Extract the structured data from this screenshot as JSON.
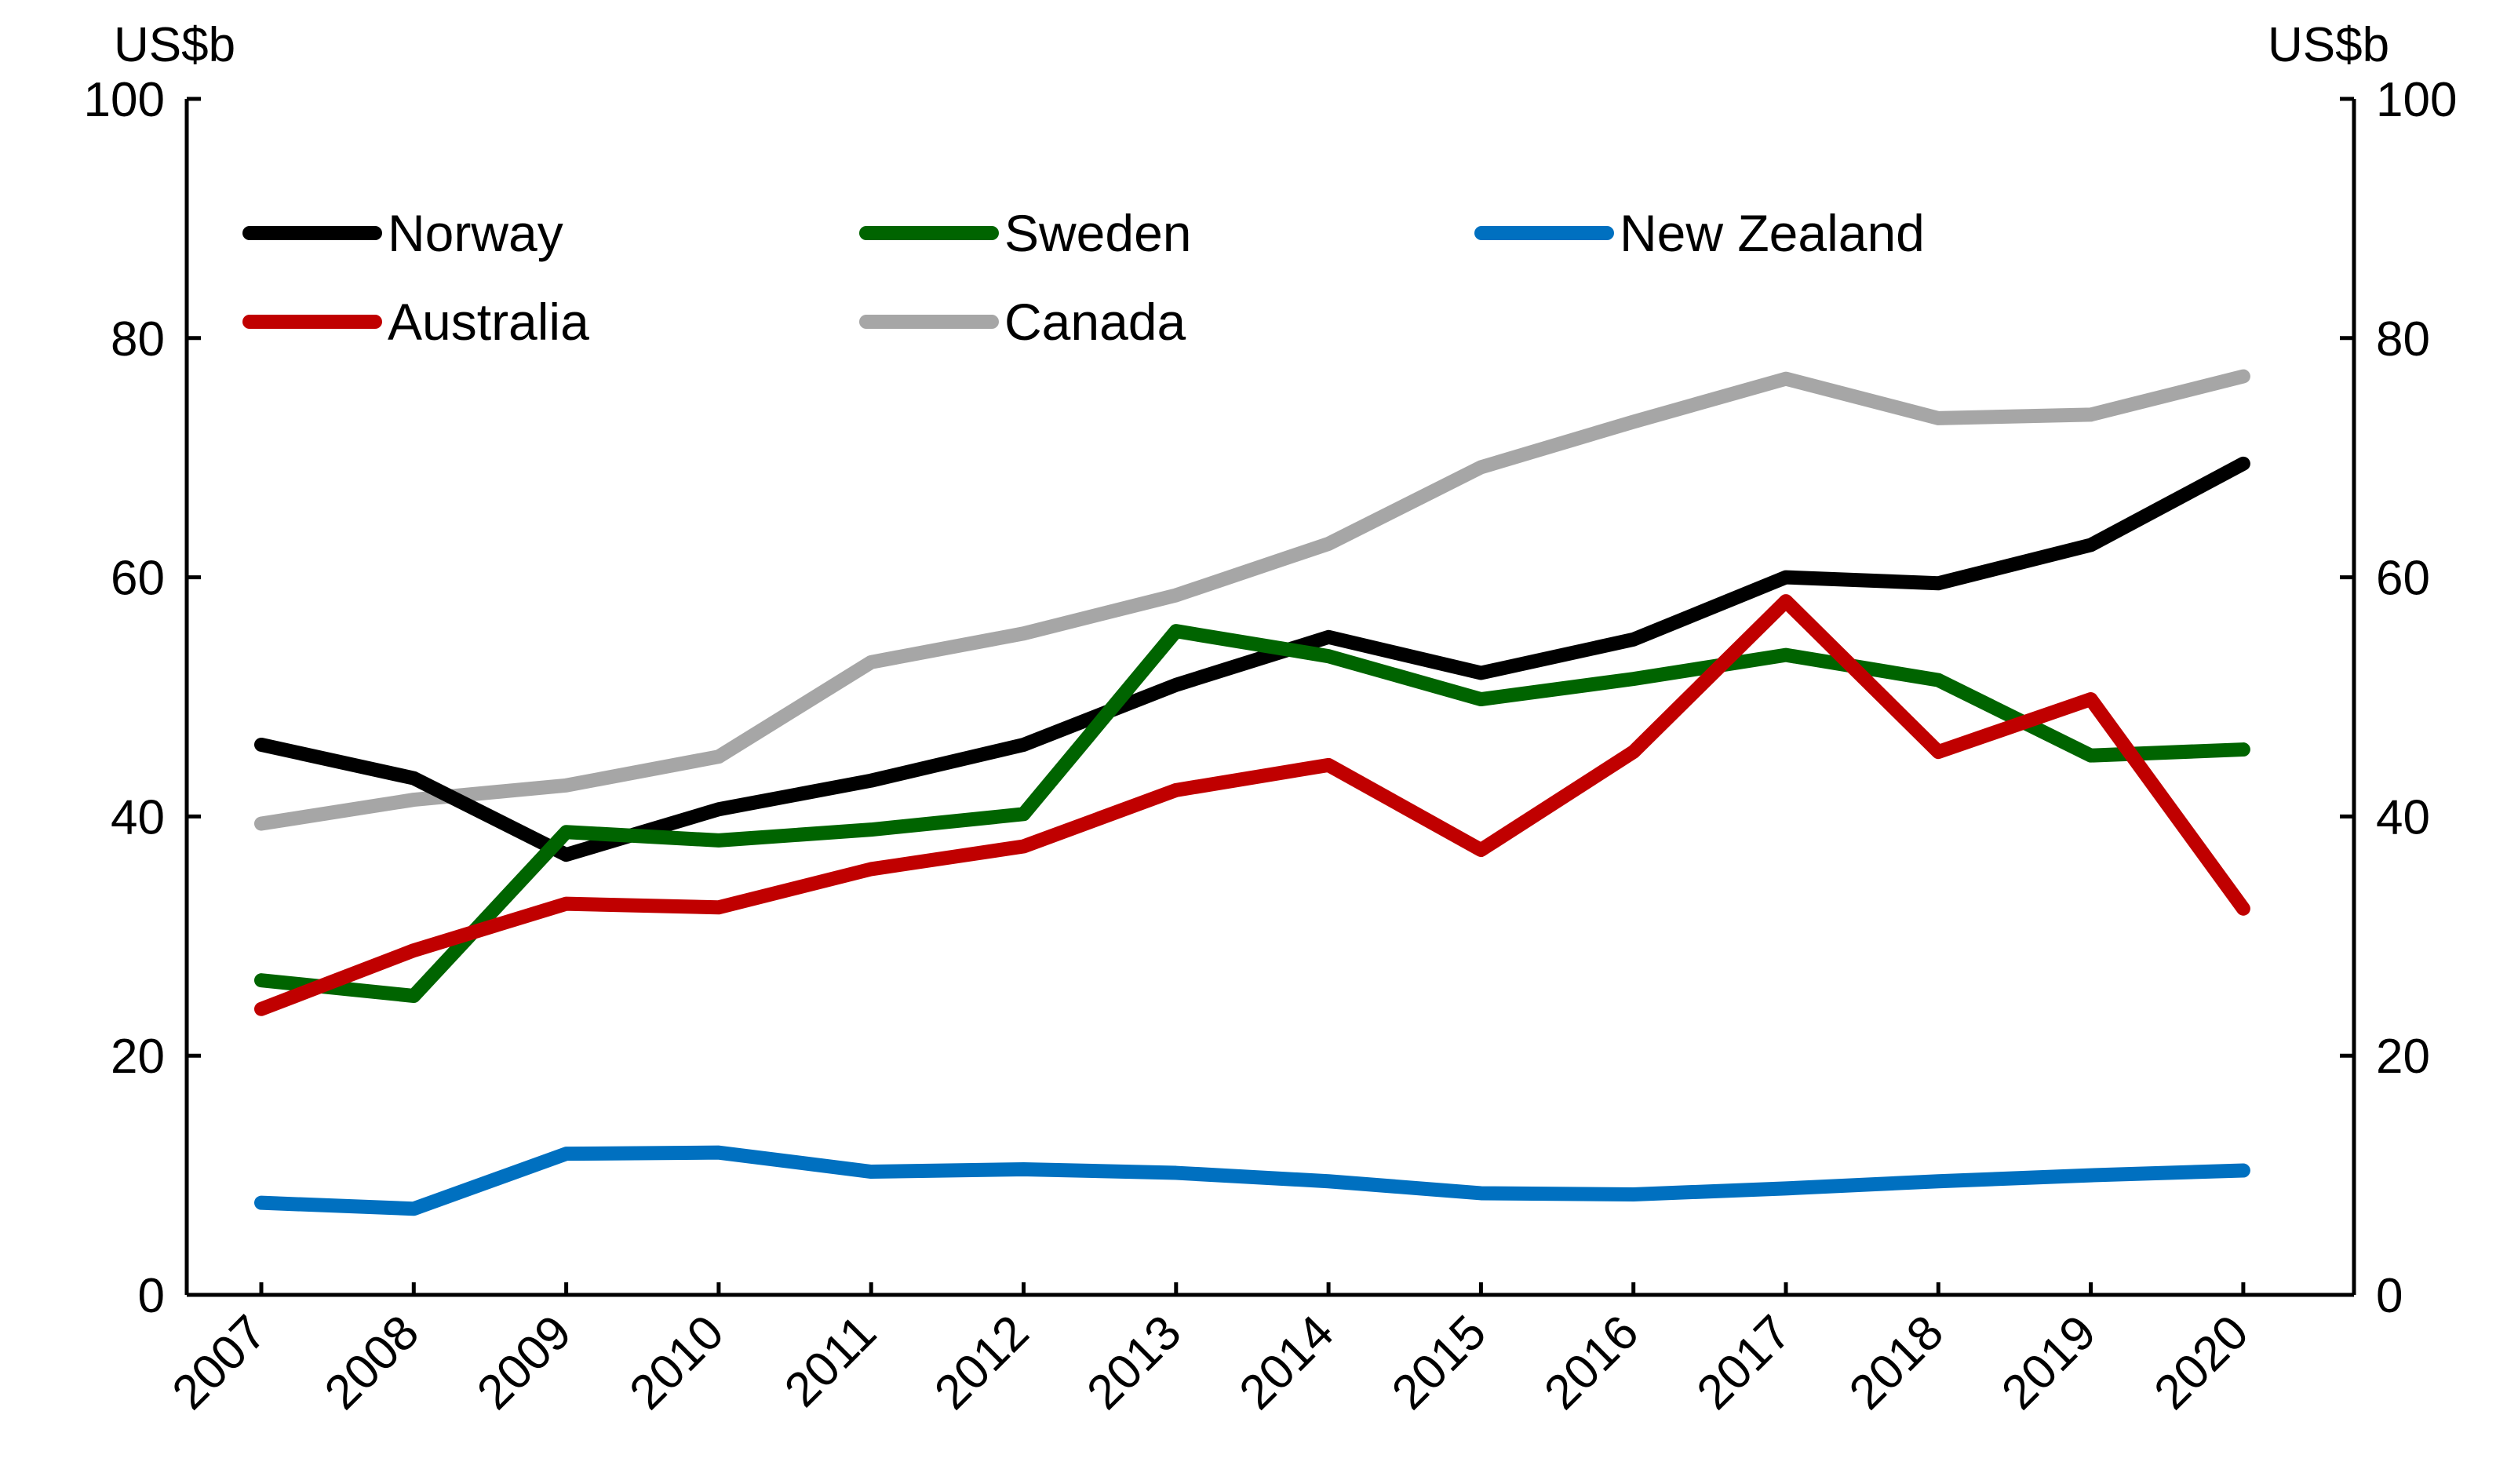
{
  "chart_data": {
    "type": "line",
    "y_unit_left": "US$b",
    "y_unit_right": "US$b",
    "categories": [
      "2007",
      "2008",
      "2009",
      "2010",
      "2011",
      "2012",
      "2013",
      "2014",
      "2015",
      "2016",
      "2017",
      "2018",
      "2019",
      "2020"
    ],
    "ylim": [
      0,
      100
    ],
    "yticks": [
      "0",
      "20",
      "40",
      "60",
      "80",
      "100"
    ],
    "legend_position": "top-left",
    "grid": false,
    "series": [
      {
        "name": "Norway",
        "color": "#000000",
        "values": [
          46.0,
          43.2,
          36.8,
          40.6,
          43.0,
          46.0,
          51.0,
          55.0,
          52.0,
          54.8,
          60.0,
          59.5,
          62.7,
          69.5
        ]
      },
      {
        "name": "Sweden",
        "color": "#006400",
        "values": [
          26.3,
          25.0,
          38.7,
          38.0,
          38.9,
          40.2,
          55.5,
          53.4,
          49.8,
          51.5,
          53.5,
          51.4,
          45.1,
          45.6
        ]
      },
      {
        "name": "New Zealand",
        "color": "#0070C0",
        "values": [
          7.7,
          7.2,
          11.8,
          11.9,
          10.3,
          10.5,
          10.2,
          9.5,
          8.5,
          8.4,
          8.9,
          9.5,
          10.0,
          10.4
        ]
      },
      {
        "name": "Australia",
        "color": "#C00000",
        "values": [
          23.9,
          28.8,
          32.7,
          32.4,
          35.6,
          37.5,
          42.2,
          44.3,
          37.2,
          45.4,
          58.0,
          45.4,
          49.8,
          32.3
        ]
      },
      {
        "name": "Canada",
        "color": "#A6A6A6",
        "values": [
          39.4,
          41.4,
          42.6,
          45.0,
          52.9,
          55.3,
          58.5,
          62.8,
          69.2,
          73.0,
          76.6,
          73.3,
          73.6,
          76.8
        ]
      }
    ]
  }
}
